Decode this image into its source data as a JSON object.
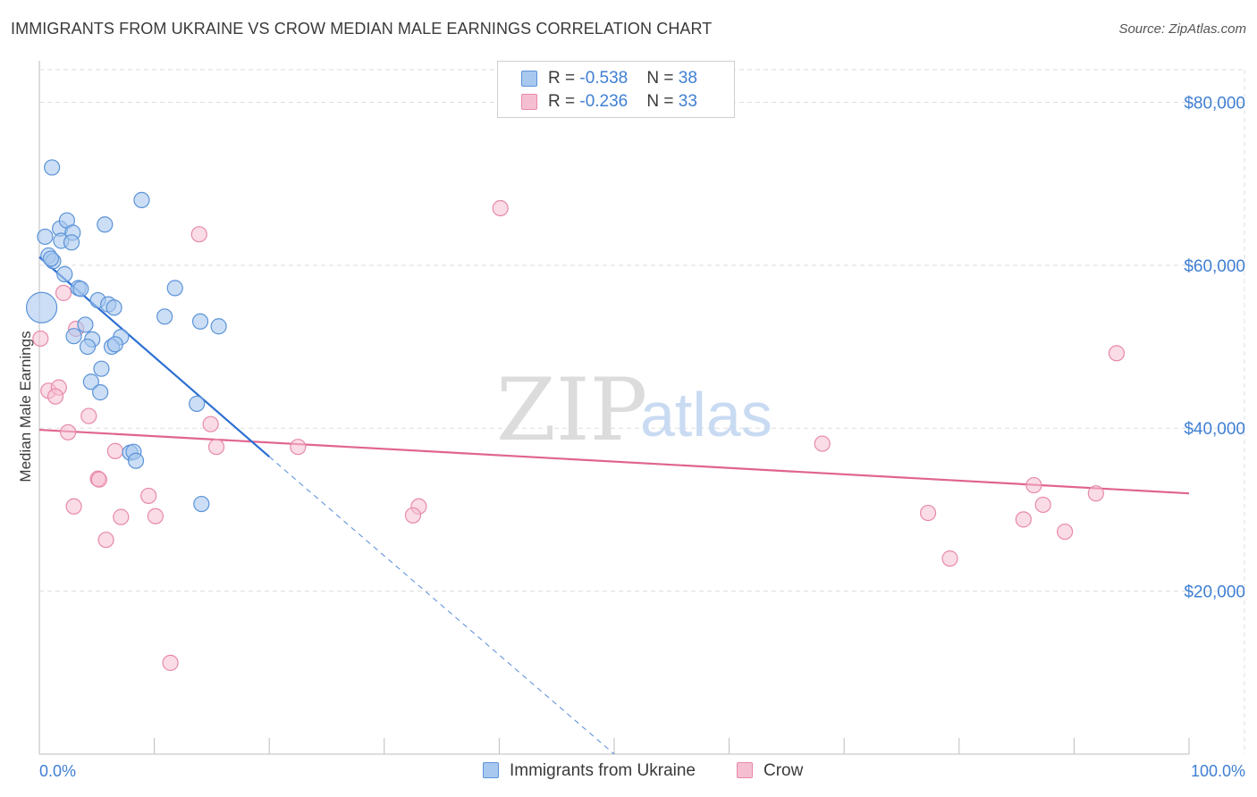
{
  "header": {
    "title": "IMMIGRANTS FROM UKRAINE VS CROW MEDIAN MALE EARNINGS CORRELATION CHART",
    "source": "Source: ZipAtlas.com"
  },
  "watermark": {
    "zip": "ZIP",
    "atlas": "atlas"
  },
  "legend": {
    "rows": [
      {
        "r_label": "R = ",
        "r_value": "-0.538",
        "n_label": "N = ",
        "n_value": "38"
      },
      {
        "r_label": "R = ",
        "r_value": "-0.236",
        "n_label": "N = ",
        "n_value": "33"
      }
    ]
  },
  "colors": {
    "ukraine_fill": "#a9c8ef",
    "ukraine_stroke": "#5b93d8",
    "ukraine_line": "#2c6fd1",
    "crow_fill": "#f6bfd1",
    "crow_stroke": "#e889aa",
    "crow_line": "#e0648f",
    "grid": "#dedede",
    "axis_text": "#3f7fd3"
  },
  "chart_data": {
    "type": "scatter",
    "title": "IMMIGRANTS FROM UKRAINE VS CROW MEDIAN MALE EARNINGS CORRELATION CHART",
    "xlabel": "",
    "ylabel": "Median Male Earnings",
    "xlim": [
      0,
      100
    ],
    "ylim": [
      0,
      84000
    ],
    "x_tick_labels": [
      "0.0%",
      "100.0%"
    ],
    "y_ticks": [
      20000,
      40000,
      60000,
      80000
    ],
    "y_tick_labels": [
      "$20,000",
      "$40,000",
      "$60,000",
      "$80,000"
    ],
    "grid": true,
    "legend_position": "bottom-center",
    "series": [
      {
        "name": "Immigrants from Ukraine",
        "color": "#5b93d8",
        "R": -0.538,
        "N": 38,
        "trend": {
          "x": [
            0,
            20
          ],
          "y": [
            61000,
            36500
          ]
        },
        "trend_extension": {
          "x": [
            20,
            50
          ],
          "y": [
            36500,
            0
          ]
        },
        "points": [
          {
            "x": 1.1,
            "y": 72000
          },
          {
            "x": 0.5,
            "y": 63500
          },
          {
            "x": 1.8,
            "y": 64500
          },
          {
            "x": 2.4,
            "y": 65500
          },
          {
            "x": 1.9,
            "y": 63000
          },
          {
            "x": 2.9,
            "y": 64000
          },
          {
            "x": 2.8,
            "y": 62800
          },
          {
            "x": 0.8,
            "y": 61200
          },
          {
            "x": 1.2,
            "y": 60500
          },
          {
            "x": 5.7,
            "y": 65000
          },
          {
            "x": 8.9,
            "y": 68000
          },
          {
            "x": 2.2,
            "y": 58900
          },
          {
            "x": 3.4,
            "y": 57200
          },
          {
            "x": 3.6,
            "y": 57100
          },
          {
            "x": 5.1,
            "y": 55700
          },
          {
            "x": 6.0,
            "y": 55200
          },
          {
            "x": 6.5,
            "y": 54800
          },
          {
            "x": 0.2,
            "y": 54800,
            "large": true
          },
          {
            "x": 11.8,
            "y": 57200
          },
          {
            "x": 10.9,
            "y": 53700
          },
          {
            "x": 14.0,
            "y": 53100
          },
          {
            "x": 15.6,
            "y": 52500
          },
          {
            "x": 4.0,
            "y": 52700
          },
          {
            "x": 3.0,
            "y": 51300
          },
          {
            "x": 4.6,
            "y": 50900
          },
          {
            "x": 7.1,
            "y": 51200
          },
          {
            "x": 4.2,
            "y": 50000
          },
          {
            "x": 6.3,
            "y": 50000
          },
          {
            "x": 6.6,
            "y": 50300
          },
          {
            "x": 5.4,
            "y": 47300
          },
          {
            "x": 4.5,
            "y": 45700
          },
          {
            "x": 5.3,
            "y": 44400
          },
          {
            "x": 13.7,
            "y": 43000
          },
          {
            "x": 7.9,
            "y": 37000
          },
          {
            "x": 8.2,
            "y": 37100
          },
          {
            "x": 8.4,
            "y": 36000
          },
          {
            "x": 14.1,
            "y": 30700
          },
          {
            "x": 1.0,
            "y": 60800
          }
        ]
      },
      {
        "name": "Crow",
        "color": "#e889aa",
        "R": -0.236,
        "N": 33,
        "trend": {
          "x": [
            0,
            100
          ],
          "y": [
            39800,
            32000
          ]
        },
        "points": [
          {
            "x": 40.1,
            "y": 67000
          },
          {
            "x": 13.9,
            "y": 63800
          },
          {
            "x": 2.1,
            "y": 56600
          },
          {
            "x": 0.1,
            "y": 51000
          },
          {
            "x": 3.2,
            "y": 52200
          },
          {
            "x": 93.7,
            "y": 49200
          },
          {
            "x": 0.8,
            "y": 44600
          },
          {
            "x": 1.7,
            "y": 45000
          },
          {
            "x": 1.4,
            "y": 43900
          },
          {
            "x": 4.3,
            "y": 41500
          },
          {
            "x": 14.9,
            "y": 40500
          },
          {
            "x": 2.5,
            "y": 39500
          },
          {
            "x": 15.4,
            "y": 37700
          },
          {
            "x": 22.5,
            "y": 37700
          },
          {
            "x": 68.1,
            "y": 38100
          },
          {
            "x": 6.6,
            "y": 37200
          },
          {
            "x": 5.1,
            "y": 33800
          },
          {
            "x": 5.2,
            "y": 33700
          },
          {
            "x": 9.5,
            "y": 31700
          },
          {
            "x": 86.5,
            "y": 33000
          },
          {
            "x": 91.9,
            "y": 32000
          },
          {
            "x": 3.0,
            "y": 30400
          },
          {
            "x": 33.0,
            "y": 30400
          },
          {
            "x": 87.3,
            "y": 30600
          },
          {
            "x": 32.5,
            "y": 29300
          },
          {
            "x": 77.3,
            "y": 29600
          },
          {
            "x": 7.1,
            "y": 29100
          },
          {
            "x": 10.1,
            "y": 29200
          },
          {
            "x": 85.6,
            "y": 28800
          },
          {
            "x": 89.2,
            "y": 27300
          },
          {
            "x": 5.8,
            "y": 26300
          },
          {
            "x": 79.2,
            "y": 24000
          },
          {
            "x": 11.4,
            "y": 11200
          }
        ]
      }
    ]
  }
}
